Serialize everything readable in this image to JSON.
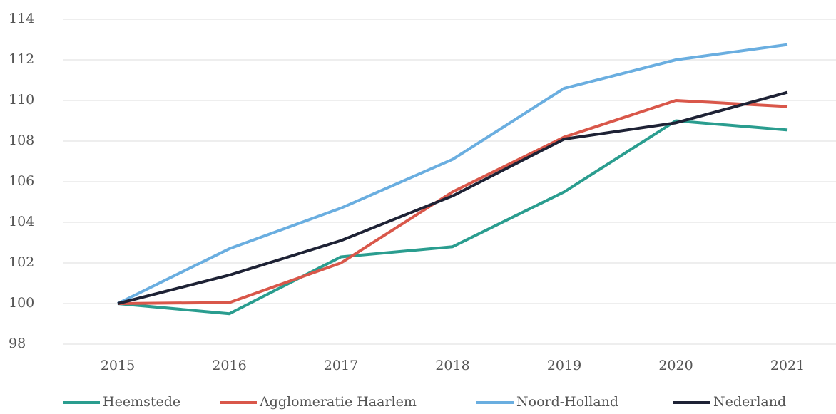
{
  "chart_data": {
    "type": "line",
    "categories": [
      "2015",
      "2016",
      "2017",
      "2018",
      "2019",
      "2020",
      "2021"
    ],
    "series": [
      {
        "name": "Heemstede",
        "color": "#2a9d8f",
        "values": [
          100,
          99.5,
          102.3,
          102.8,
          105.5,
          109,
          108.55
        ]
      },
      {
        "name": "Agglomeratie Haarlem",
        "color": "#d9574a",
        "values": [
          100,
          100.05,
          102,
          105.5,
          108.2,
          110,
          109.7
        ]
      },
      {
        "name": "Noord-Holland",
        "color": "#6aaee0",
        "values": [
          100,
          102.7,
          104.7,
          107.1,
          110.6,
          112,
          112.75
        ]
      },
      {
        "name": "Nederland",
        "color": "#1e2235",
        "values": [
          100,
          101.4,
          103.1,
          105.3,
          108.1,
          108.9,
          110.4
        ]
      }
    ],
    "ylim": [
      98,
      114
    ],
    "yticks": [
      98,
      100,
      102,
      104,
      106,
      108,
      110,
      112,
      114
    ],
    "grid": true,
    "legend": "bottom"
  }
}
